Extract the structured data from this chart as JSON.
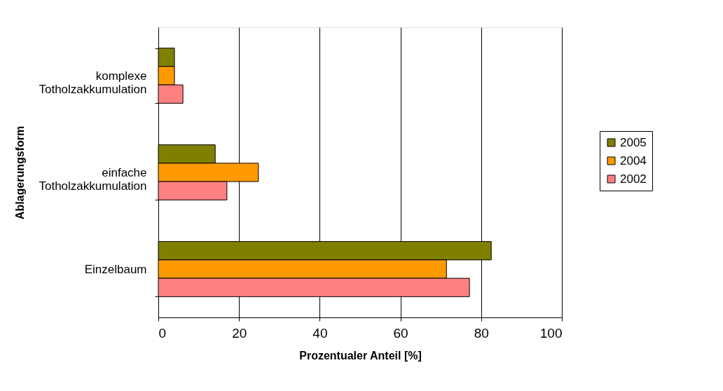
{
  "chart_data": {
    "type": "bar",
    "orientation": "horizontal",
    "xlabel": "Prozentualer Anteil [%]",
    "ylabel": "Ablagerungsform",
    "categories": [
      "komplexe Totholzakkumulation",
      "einfache Totholzakkumulation",
      "Einzelbaum"
    ],
    "series": [
      {
        "name": "2005",
        "color": "#808000",
        "values": [
          4,
          14.1,
          82.5
        ]
      },
      {
        "name": "2004",
        "color": "#ff9900",
        "values": [
          4,
          24.8,
          71.4
        ]
      },
      {
        "name": "2002",
        "color": "#ff8080",
        "values": [
          6.1,
          17.0,
          77.1
        ]
      }
    ],
    "xlim": [
      0,
      100
    ],
    "xticks": [
      0,
      20,
      40,
      60,
      80,
      100
    ],
    "grid": "x",
    "legend": "right"
  }
}
